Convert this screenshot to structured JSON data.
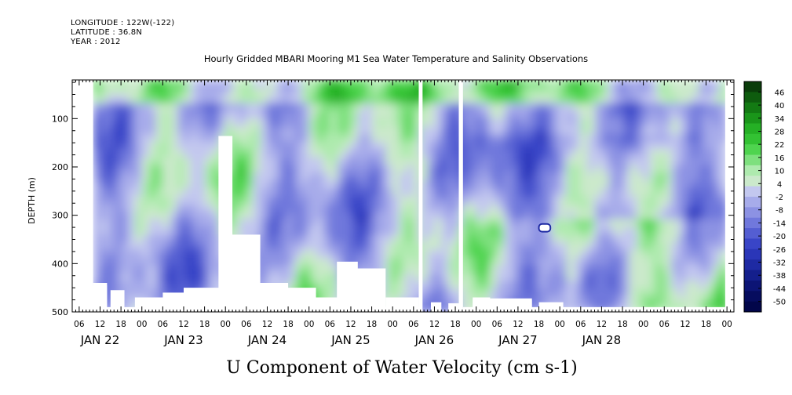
{
  "header": {
    "longitude": "LONGITUDE : 122W(-122)",
    "latitude": "LATITUDE : 36.8N",
    "year": "YEAR : 2012"
  },
  "chart_data": {
    "type": "heatmap",
    "title": "Hourly Gridded MBARI Mooring M1 Sea Water Temperature and Salinity Observations",
    "xlabel": "U Component of Water Velocity (cm s-1)",
    "ylabel": "DEPTH (m)",
    "yticks": [
      100,
      200,
      300,
      400,
      500
    ],
    "ylim": [
      500,
      20
    ],
    "xrange_hours": [
      -20,
      170
    ],
    "hour_tick_labels": [
      "06",
      "12",
      "18",
      "00",
      "06",
      "12",
      "18",
      "00",
      "06",
      "12",
      "18",
      "00",
      "06",
      "12",
      "18",
      "00",
      "06",
      "12",
      "18",
      "00",
      "06",
      "12",
      "18",
      "00",
      "06",
      "12",
      "18",
      "00",
      "06",
      "12",
      "18",
      "00"
    ],
    "first_hour_tick": -18,
    "date_labels": [
      "JAN 22",
      "JAN 23",
      "JAN 24",
      "JAN 25",
      "JAN 26",
      "JAN 27",
      "JAN 28"
    ],
    "date_label_hours": [
      -12,
      12,
      36,
      60,
      84,
      108,
      132
    ],
    "data_gaps_hours": [
      [
        79.5,
        80.6
      ],
      [
        91.0,
        92.2
      ]
    ],
    "white_patch": {
      "hour_start": 114,
      "hour_end": 117.3,
      "depth_top": 318,
      "depth_bottom": 334
    },
    "colorbar": {
      "labels": [
        "46",
        "40",
        "34",
        "28",
        "22",
        "16",
        "10",
        "4",
        "-2",
        "-8",
        "-14",
        "-20",
        "-26",
        "-32",
        "-38",
        "-44",
        "-50"
      ],
      "colors": [
        "#0a3d0a",
        "#0e5c0e",
        "#137a13",
        "#1a961a",
        "#25b025",
        "#33c233",
        "#4fd44f",
        "#7ee07e",
        "#aeeaae",
        "#cbe9cb",
        "#c3c8ef",
        "#a7acea",
        "#8c92e3",
        "#7078dc",
        "#545ed2",
        "#3945c7",
        "#2a36b8",
        "#1e2aa3",
        "#141f8c",
        "#0c1475",
        "#060c5e",
        "#02064a"
      ]
    },
    "grid": false
  }
}
